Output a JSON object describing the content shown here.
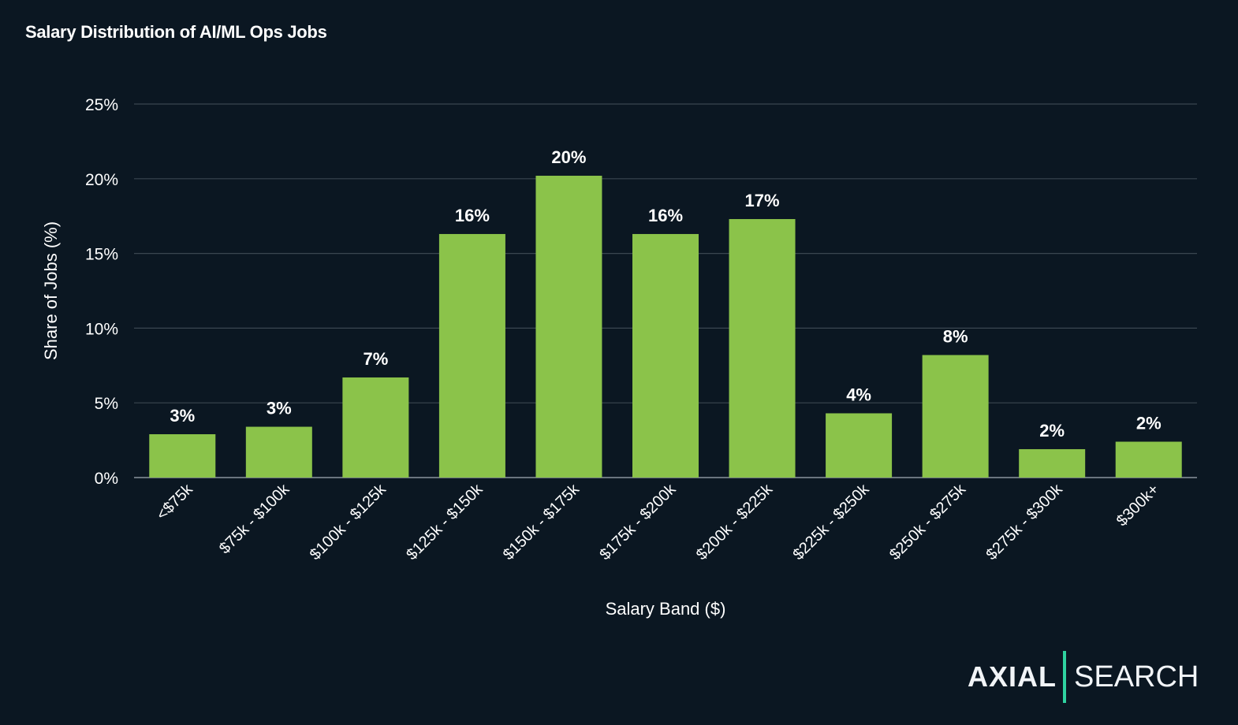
{
  "chart_data": {
    "type": "bar",
    "title": "Salary Distribution of AI/ML Ops Jobs",
    "xlabel": "Salary Band ($)",
    "ylabel": "Share of Jobs (%)",
    "ylim": [
      0,
      25
    ],
    "yticks": [
      "0%",
      "5%",
      "10%",
      "15%",
      "20%",
      "25%"
    ],
    "grid": true,
    "categories": [
      "<$75k",
      "$75k - $100k",
      "$100k - $125k",
      "$125k - $150k",
      "$150k - $175k",
      "$175k - $200k",
      "$200k - $225k",
      "$225k - $250k",
      "$250k - $275k",
      "$275k - $300k",
      "$300k+"
    ],
    "values": [
      2.9,
      3.4,
      6.7,
      16.3,
      20.2,
      16.3,
      17.3,
      4.3,
      8.2,
      1.9,
      2.4
    ],
    "data_labels": [
      "3%",
      "3%",
      "7%",
      "16%",
      "20%",
      "16%",
      "17%",
      "4%",
      "8%",
      "2%",
      "2%"
    ],
    "colors": {
      "bar": "#8bc34a",
      "background": "#0b1722",
      "grid": "#3a4650"
    }
  },
  "logo": {
    "left": "AXIAL",
    "right": "SEARCH",
    "accent": "#2fd3a0"
  }
}
